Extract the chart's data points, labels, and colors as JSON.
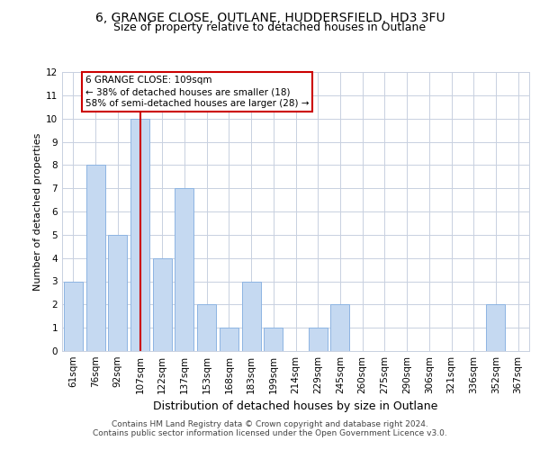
{
  "title1": "6, GRANGE CLOSE, OUTLANE, HUDDERSFIELD, HD3 3FU",
  "title2": "Size of property relative to detached houses in Outlane",
  "xlabel": "Distribution of detached houses by size in Outlane",
  "ylabel": "Number of detached properties",
  "categories": [
    "61sqm",
    "76sqm",
    "92sqm",
    "107sqm",
    "122sqm",
    "137sqm",
    "153sqm",
    "168sqm",
    "183sqm",
    "199sqm",
    "214sqm",
    "229sqm",
    "245sqm",
    "260sqm",
    "275sqm",
    "290sqm",
    "306sqm",
    "321sqm",
    "336sqm",
    "352sqm",
    "367sqm"
  ],
  "values": [
    3,
    8,
    5,
    10,
    4,
    7,
    2,
    1,
    3,
    1,
    0,
    1,
    2,
    0,
    0,
    0,
    0,
    0,
    0,
    2,
    0
  ],
  "bar_color": "#c5d9f1",
  "bar_edgecolor": "#8db4e2",
  "redline_index": 3,
  "ylim": [
    0,
    12
  ],
  "yticks": [
    0,
    1,
    2,
    3,
    4,
    5,
    6,
    7,
    8,
    9,
    10,
    11,
    12
  ],
  "annotation_text": "6 GRANGE CLOSE: 109sqm\n← 38% of detached houses are smaller (18)\n58% of semi-detached houses are larger (28) →",
  "footer1": "Contains HM Land Registry data © Crown copyright and database right 2024.",
  "footer2": "Contains public sector information licensed under the Open Government Licence v3.0.",
  "bg_color": "#ffffff",
  "grid_color": "#c8d0e0",
  "title_fontsize": 10,
  "subtitle_fontsize": 9,
  "tick_fontsize": 7.5,
  "ylabel_fontsize": 8,
  "xlabel_fontsize": 9,
  "annotation_fontsize": 7.5,
  "annotation_box_edgecolor": "#cc0000",
  "redline_color": "#cc0000",
  "footer_fontsize": 6.5
}
